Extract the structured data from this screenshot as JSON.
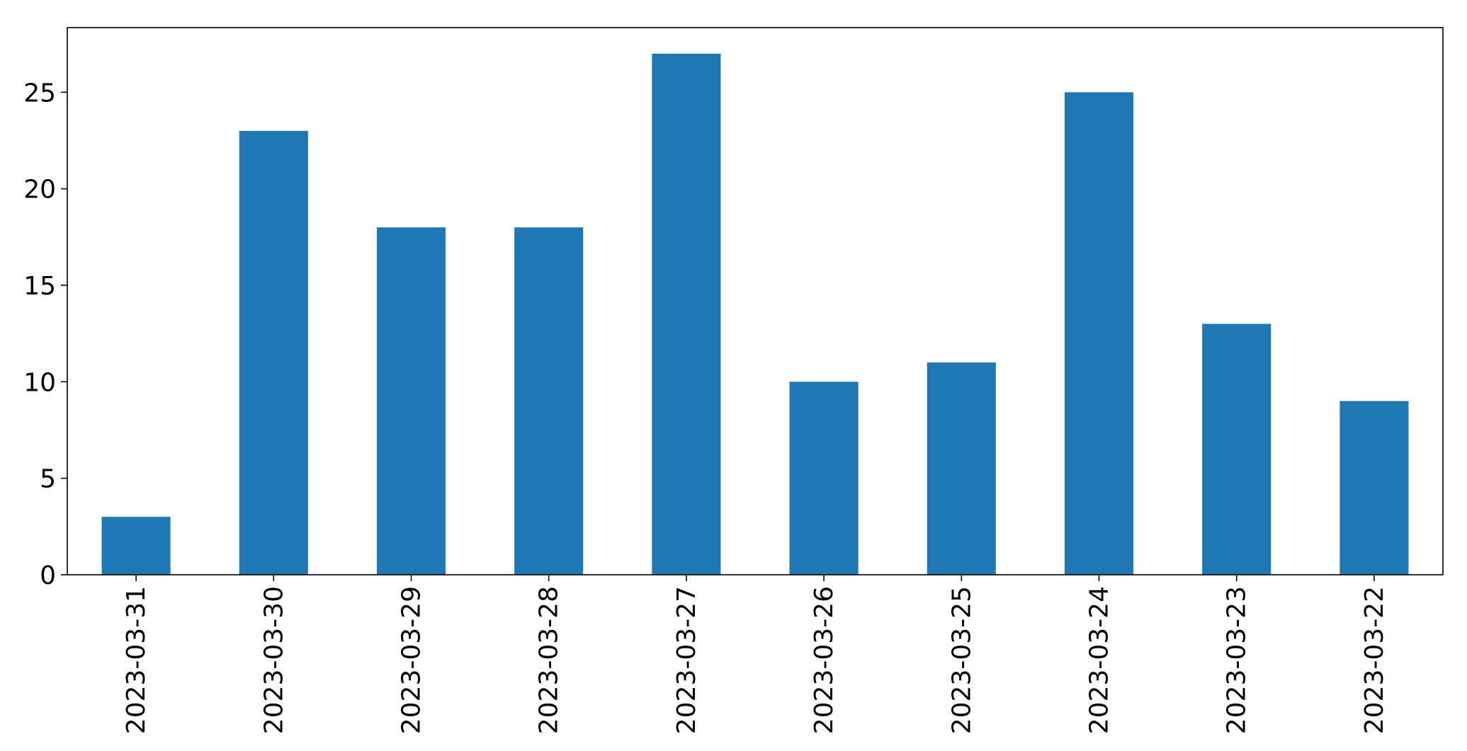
{
  "chart_data": {
    "type": "bar",
    "title": "",
    "xlabel": "",
    "ylabel": "",
    "categories": [
      "2023-03-31",
      "2023-03-30",
      "2023-03-29",
      "2023-03-28",
      "2023-03-27",
      "2023-03-26",
      "2023-03-25",
      "2023-03-24",
      "2023-03-23",
      "2023-03-22"
    ],
    "values": [
      3,
      23,
      18,
      18,
      27,
      10,
      11,
      25,
      13,
      9
    ],
    "ylim": [
      0,
      28.35
    ],
    "yticks": [
      0,
      5,
      10,
      15,
      20,
      25
    ],
    "bar_color": "#1f77b4",
    "grid": false,
    "legend": "none"
  }
}
